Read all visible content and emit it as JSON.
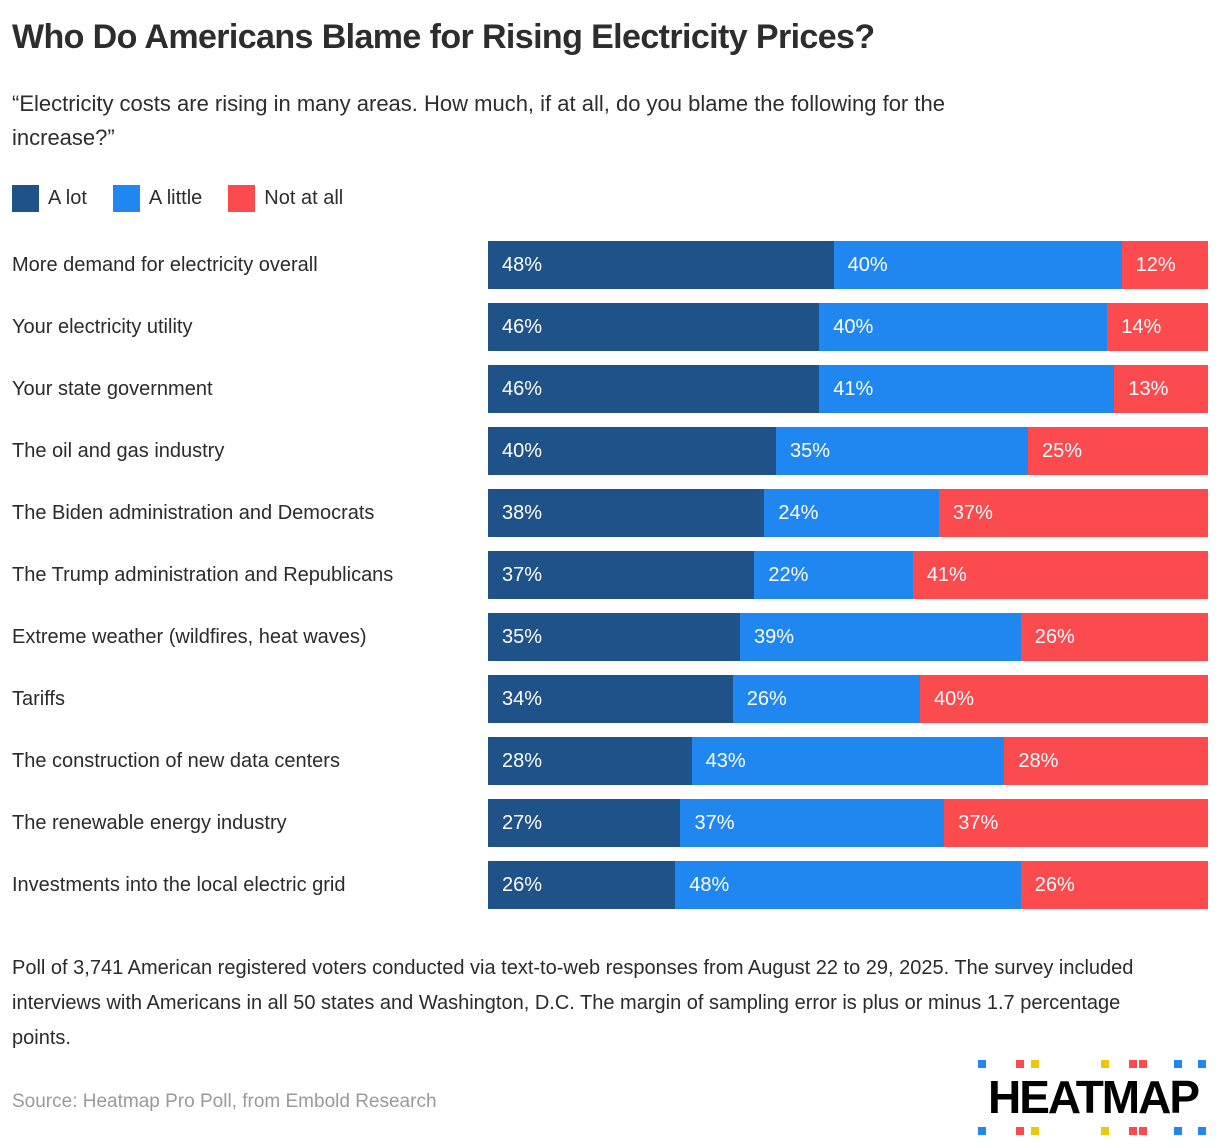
{
  "header": {
    "title": "Who Do Americans Blame for Rising Electricity Prices?",
    "subtitle": "“Electricity costs are rising in many areas. How much, if at all, do you blame the following for the increase?”"
  },
  "chart_data": {
    "type": "bar",
    "orientation": "horizontal",
    "stacked": true,
    "normalized_to_100": true,
    "grid": false,
    "legend_position": "top",
    "value_suffix": "%",
    "xlim": [
      0,
      100
    ],
    "categories": [
      "More demand for electricity overall",
      "Your electricity utility",
      "Your state government",
      "The oil and gas industry",
      "The Biden administration and Democrats",
      "The Trump administration and Republicans",
      "Extreme weather (wildfires, heat waves)",
      "Tariffs",
      "The construction of new data centers",
      "The renewable energy industry",
      "Investments into the local electric grid"
    ],
    "series": [
      {
        "name": "A lot",
        "color": "#1e5288",
        "values": [
          48,
          46,
          46,
          40,
          38,
          37,
          35,
          34,
          28,
          27,
          26
        ]
      },
      {
        "name": "A little",
        "color": "#2087f0",
        "values": [
          40,
          40,
          41,
          35,
          24,
          22,
          39,
          26,
          43,
          37,
          48
        ]
      },
      {
        "name": "Not at all",
        "color": "#fb4b4e",
        "values": [
          12,
          14,
          13,
          25,
          37,
          41,
          26,
          40,
          28,
          37,
          26
        ]
      }
    ]
  },
  "footer": {
    "note": "Poll of 3,741 American registered voters conducted via text-to-web responses from August 22 to 29, 2025. The survey included interviews with Americans in all 50 states and Washington, D.C. The margin of sampling error is plus or minus 1.7 percentage points.",
    "source": "Source: Heatmap Pro Poll, from Embold Research",
    "logo": {
      "text": "HEATMAP",
      "dot_colors": [
        "#2087f0",
        "#fb4b4e",
        "#ecc70e",
        "#ecc70e",
        "#fb4b4e",
        "#fb4b4e",
        "#2087f0",
        "#2087f0"
      ]
    }
  }
}
